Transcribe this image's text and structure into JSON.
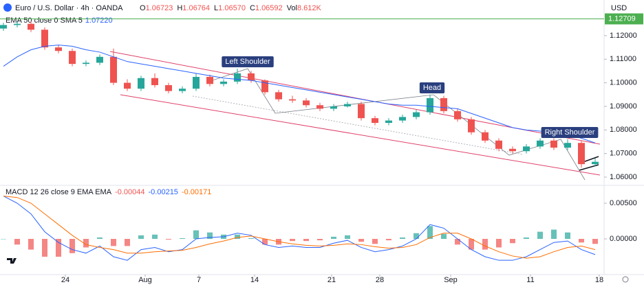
{
  "header": {
    "symbol": "Euro / U.S. Dollar · 4h · OANDA",
    "ohlc": [
      [
        "O",
        "1.06723"
      ],
      [
        "H",
        "1.06764"
      ],
      [
        "L",
        "1.06570"
      ],
      [
        "C",
        "1.06592"
      ],
      [
        "Vol",
        "8.612K"
      ]
    ],
    "currency": "USD"
  },
  "chart_data": [
    {
      "type": "candlestick",
      "indicator": {
        "name": "EMA 50 close 0 SMA 5",
        "value": "1.07220",
        "color": "#2962ff",
        "values": [
          1.107,
          1.111,
          1.114,
          1.1155,
          1.116,
          1.1155,
          1.114,
          1.113,
          1.111,
          1.109,
          1.108,
          1.107,
          1.106,
          1.105,
          1.104,
          1.103,
          1.102,
          1.1015,
          1.101,
          1.1,
          1.099,
          1.098,
          1.097,
          1.096,
          1.095,
          1.094,
          1.093,
          1.092,
          1.091,
          1.0905,
          1.0905,
          1.09,
          1.0895,
          1.089,
          1.087,
          1.085,
          1.083,
          1.081,
          1.08,
          1.0795,
          1.079,
          1.078,
          1.0765,
          1.0745
        ]
      },
      "open": [
        1.123,
        1.1245,
        1.125,
        1.1225,
        1.115,
        1.1135,
        1.108,
        1.1085,
        1.111,
        1.1,
        1.0975,
        1.102,
        1.099,
        1.0965,
        1.0975,
        1.1025,
        1.0995,
        1.1005,
        1.104,
        1.101,
        1.096,
        1.093,
        1.0925,
        1.0905,
        1.089,
        1.09,
        1.091,
        1.085,
        1.083,
        1.084,
        1.0855,
        1.0875,
        1.0935,
        1.088,
        1.0845,
        1.079,
        1.0755,
        1.072,
        1.071,
        1.073,
        1.0755,
        1.0725,
        1.0745,
        1.0655
      ],
      "high": [
        1.1255,
        1.1262,
        1.126,
        1.1235,
        1.116,
        1.1145,
        1.1095,
        1.112,
        1.1145,
        1.1015,
        1.103,
        1.104,
        1.1,
        1.0985,
        1.104,
        1.1035,
        1.1015,
        1.106,
        1.105,
        1.1015,
        1.097,
        1.0945,
        1.0935,
        1.0915,
        1.091,
        1.092,
        1.092,
        1.086,
        1.085,
        1.0865,
        1.0885,
        1.095,
        1.0945,
        1.089,
        1.0855,
        1.08,
        1.0765,
        1.073,
        1.074,
        1.0765,
        1.0765,
        1.076,
        1.0755,
        1.068
      ],
      "low": [
        1.122,
        1.1235,
        1.1215,
        1.114,
        1.1125,
        1.107,
        1.107,
        1.1075,
        1.099,
        1.0965,
        1.0965,
        1.098,
        1.0955,
        1.0955,
        1.0965,
        1.0985,
        1.0985,
        1.0995,
        1.1,
        1.095,
        1.092,
        1.0915,
        1.0895,
        1.088,
        1.088,
        1.0895,
        1.084,
        1.082,
        1.082,
        1.083,
        1.0845,
        1.0865,
        1.087,
        1.0835,
        1.078,
        1.0745,
        1.071,
        1.07,
        1.07,
        1.072,
        1.0715,
        1.0715,
        1.064,
        1.0645
      ],
      "close": [
        1.1245,
        1.125,
        1.1225,
        1.115,
        1.1135,
        1.108,
        1.1085,
        1.111,
        1.1,
        1.0975,
        1.102,
        1.099,
        1.0965,
        1.0975,
        1.1025,
        1.0995,
        1.1005,
        1.104,
        1.101,
        1.096,
        1.093,
        1.0925,
        1.0905,
        1.089,
        1.09,
        1.091,
        1.085,
        1.083,
        1.084,
        1.0855,
        1.0875,
        1.0935,
        1.088,
        1.0845,
        1.079,
        1.0755,
        1.072,
        1.071,
        1.073,
        1.0755,
        1.0725,
        1.0745,
        1.0655,
        1.0665
      ],
      "up_color": "#26a69a",
      "down_color": "#ef5350",
      "ylim": [
        1.0571,
        1.1351
      ],
      "yticks": [
        {
          "value": 1.06,
          "label": "1.06000"
        },
        {
          "value": 1.07,
          "label": "1.07000"
        },
        {
          "value": 1.08,
          "label": "1.08000"
        },
        {
          "value": 1.09,
          "label": "1.09000"
        },
        {
          "value": 1.1,
          "label": "1.10000"
        },
        {
          "value": 1.11,
          "label": "1.11000"
        },
        {
          "value": 1.12,
          "label": "1.12000"
        }
      ],
      "price_line": {
        "value": 1.12709,
        "label": "1.12709",
        "color": "#4caf50"
      },
      "annotations": [
        "Left Shoulder",
        "Head",
        "Right Shoulder"
      ]
    },
    {
      "type": "macd",
      "name": "MACD 12 26 close 9 EMA EMA",
      "legend_values": [
        {
          "text": "-0.00044",
          "color": "#ef5350"
        },
        {
          "text": "-0.00215",
          "color": "#2962ff"
        },
        {
          "text": "-0.00171",
          "color": "#ff6d00"
        }
      ],
      "histogram": [
        0,
        -0.0008,
        -0.0015,
        -0.0025,
        -0.0025,
        -0.002,
        -0.0012,
        0.0002,
        -0.001,
        -0.001,
        0.0005,
        0.0006,
        -0.0001,
        0.0001,
        0.0012,
        0.0009,
        0.0006,
        0.0006,
        0.0001,
        -0.0008,
        -0.0008,
        -0.0003,
        -0.0003,
        -0.0002,
        0.0003,
        0.0005,
        -0.0004,
        -0.0007,
        -0.0002,
        0.0002,
        0.0008,
        0.0018,
        0.0007,
        -0.0008,
        -0.0015,
        -0.0015,
        -0.0012,
        -0.0006,
        0.0002,
        0.001,
        0.0013,
        0.0009,
        -0.0005,
        -0.0007
      ],
      "series": [
        {
          "color": "#2962ff",
          "values": [
            0.006,
            0.005,
            0.0035,
            0.001,
            -0.0005,
            -0.0015,
            -0.002,
            -0.001,
            -0.0025,
            -0.003,
            -0.0015,
            -0.0012,
            -0.0018,
            -0.0015,
            0,
            0.0002,
            0.0003,
            0.0008,
            0.0005,
            -0.0008,
            -0.0012,
            -0.001,
            -0.0012,
            -0.0012,
            -0.0006,
            -0.0002,
            -0.0012,
            -0.0018,
            -0.0015,
            -0.001,
            0,
            0.002,
            0.0015,
            0,
            -0.0015,
            -0.0025,
            -0.003,
            -0.003,
            -0.0025,
            -0.0015,
            -0.0005,
            -0.0003,
            -0.0015,
            -0.0022
          ]
        },
        {
          "color": "#ff6d00",
          "values": [
            0.006,
            0.0058,
            0.005,
            0.0035,
            0.002,
            0.0005,
            -0.0008,
            -0.0012,
            -0.0015,
            -0.002,
            -0.002,
            -0.0018,
            -0.0017,
            -0.0016,
            -0.0012,
            -0.0007,
            -0.0003,
            0.0002,
            0.0004,
            0,
            -0.0004,
            -0.0007,
            -0.0009,
            -0.001,
            -0.0009,
            -0.0007,
            -0.0008,
            -0.0011,
            -0.0013,
            -0.0012,
            -0.0008,
            0.0002,
            0.0008,
            0.0008,
            0,
            -0.001,
            -0.0018,
            -0.0024,
            -0.0027,
            -0.0025,
            -0.0018,
            -0.0012,
            -0.001,
            -0.0015
          ]
        }
      ],
      "hist_up_color": "#26a69a",
      "hist_down_color": "#ef5350",
      "ylim": [
        -0.00481,
        0.00731
      ],
      "yticks": [
        {
          "value": 0,
          "label": "0.00000"
        },
        {
          "value": 0.005,
          "label": "0.00500"
        }
      ],
      "xticks": [
        {
          "value": 4.5,
          "label": "24"
        },
        {
          "value": 10.3,
          "label": "Aug"
        },
        {
          "value": 14.2,
          "label": "7"
        },
        {
          "value": 18.25,
          "label": "14"
        },
        {
          "value": 23.85,
          "label": "21"
        },
        {
          "value": 27.35,
          "label": "28"
        },
        {
          "value": 32.5,
          "label": "Sep"
        },
        {
          "value": 38.3,
          "label": "11"
        },
        {
          "value": 43.3,
          "label": "18"
        }
      ]
    }
  ]
}
